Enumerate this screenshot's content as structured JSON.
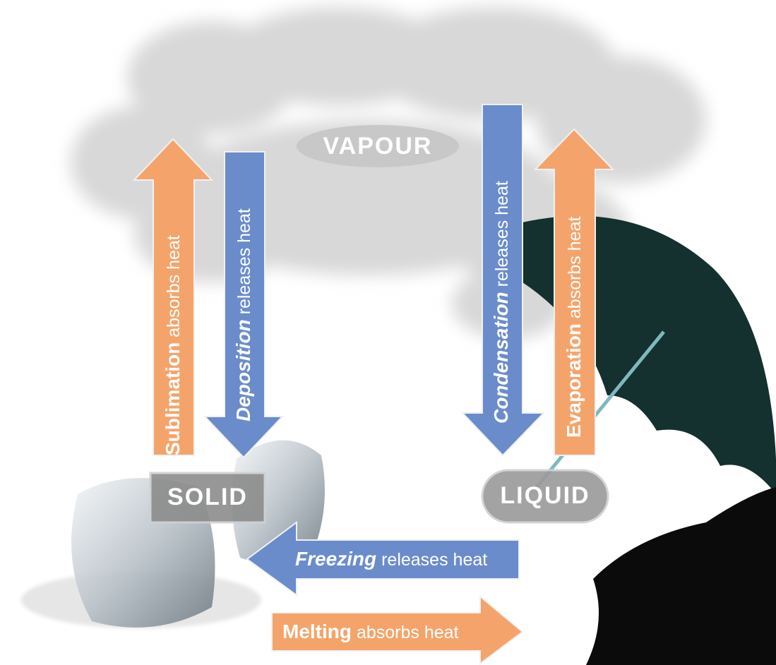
{
  "states": [
    "VAPOUR",
    "SOLID",
    "LIQUID"
  ],
  "arrows": [
    {
      "process": "Sublimation",
      "effect": "absorbs heat"
    },
    {
      "process": "Deposition",
      "effect": "releases heat"
    },
    {
      "process": "Condensation",
      "effect": "releases heat"
    },
    {
      "process": "Evaporation",
      "effect": "absorbs heat"
    },
    {
      "process": "Freezing",
      "effect": "releases heat"
    },
    {
      "process": "Melting",
      "effect": "absorbs heat"
    }
  ]
}
